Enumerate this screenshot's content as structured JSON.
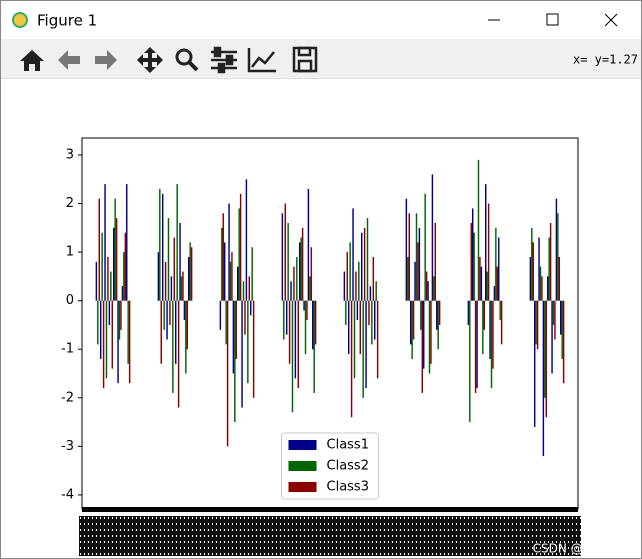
{
  "window": {
    "title": "Figure 1"
  },
  "toolbar": {
    "status": "x= y=1.27"
  },
  "watermark": "CSDN @ASS-ASH",
  "chart_data": {
    "type": "bar",
    "ylim": [
      -4.29,
      3.35
    ],
    "yticks": [
      -4,
      -3,
      -2,
      -1,
      0,
      1,
      2,
      3
    ],
    "legend": "lower center",
    "series": [
      {
        "name": "Class1",
        "color": "#00008b",
        "values": [
          0.8,
          -1.2,
          2.4,
          -0.5,
          1.5,
          -1.7,
          0.3,
          2.4,
          1.0,
          2.2,
          -0.8,
          0.5,
          -1.3,
          1.6,
          -0.4,
          0.9,
          -0.6,
          1.2,
          2.0,
          -1.5,
          0.7,
          -2.2,
          2.5,
          -0.3,
          1.8,
          -0.7,
          0.4,
          -1.6,
          1.2,
          -0.2,
          2.3,
          -1.0,
          0.6,
          -1.1,
          1.9,
          -0.4,
          1.4,
          -1.8,
          0.3,
          -0.8,
          2.1,
          -0.9,
          0.8,
          1.5,
          -1.4,
          0.4,
          2.6,
          -0.6,
          -0.5,
          1.9,
          -1.8,
          0.7,
          2.4,
          -1.2,
          0.3,
          1.3,
          0.9,
          -2.6,
          1.3,
          -3.2,
          0.5,
          -1.5,
          2.1,
          -0.7
        ]
      },
      {
        "name": "Class2",
        "color": "#006400",
        "values": [
          -0.9,
          1.4,
          -1.6,
          0.6,
          2.1,
          -0.8,
          1.0,
          -1.3,
          2.3,
          -0.6,
          1.7,
          -1.9,
          2.4,
          0.5,
          -1.5,
          1.2,
          1.5,
          -0.9,
          0.8,
          -2.5,
          1.9,
          0.4,
          -1.7,
          1.1,
          -0.8,
          1.6,
          -2.3,
          0.9,
          1.3,
          -1.1,
          0.5,
          -1.9,
          -0.5,
          1.2,
          -1.6,
          0.8,
          -2.0,
          1.7,
          -0.9,
          0.4,
          0.9,
          -1.2,
          1.8,
          -0.6,
          2.2,
          -1.5,
          0.5,
          -1.0,
          -2.5,
          1.4,
          2.9,
          -1.1,
          0.6,
          -1.8,
          1.5,
          -0.4,
          1.5,
          -0.9,
          0.7,
          -2.0,
          1.3,
          -0.5,
          1.8,
          -1.2
        ]
      },
      {
        "name": "Class3",
        "color": "#8b0000",
        "values": [
          2.1,
          -1.8,
          0.9,
          -1.4,
          1.7,
          -0.6,
          1.4,
          -1.7,
          -1.3,
          0.8,
          -0.5,
          1.3,
          -2.2,
          0.6,
          -1.0,
          1.1,
          1.8,
          -3.0,
          1.0,
          -1.2,
          2.2,
          -0.7,
          0.5,
          -2.0,
          2.0,
          -1.3,
          0.7,
          -1.8,
          1.5,
          -0.4,
          1.1,
          -0.9,
          1.0,
          -2.4,
          0.6,
          -1.1,
          1.5,
          -0.5,
          0.9,
          -1.6,
          1.8,
          -0.8,
          1.2,
          -1.9,
          0.6,
          -1.3,
          1.6,
          -0.5,
          1.6,
          -1.9,
          0.9,
          -0.6,
          2.0,
          -1.4,
          0.7,
          -0.9,
          1.2,
          -1.0,
          0.5,
          -2.4,
          1.6,
          -0.8,
          0.9,
          -1.7
        ]
      }
    ]
  }
}
